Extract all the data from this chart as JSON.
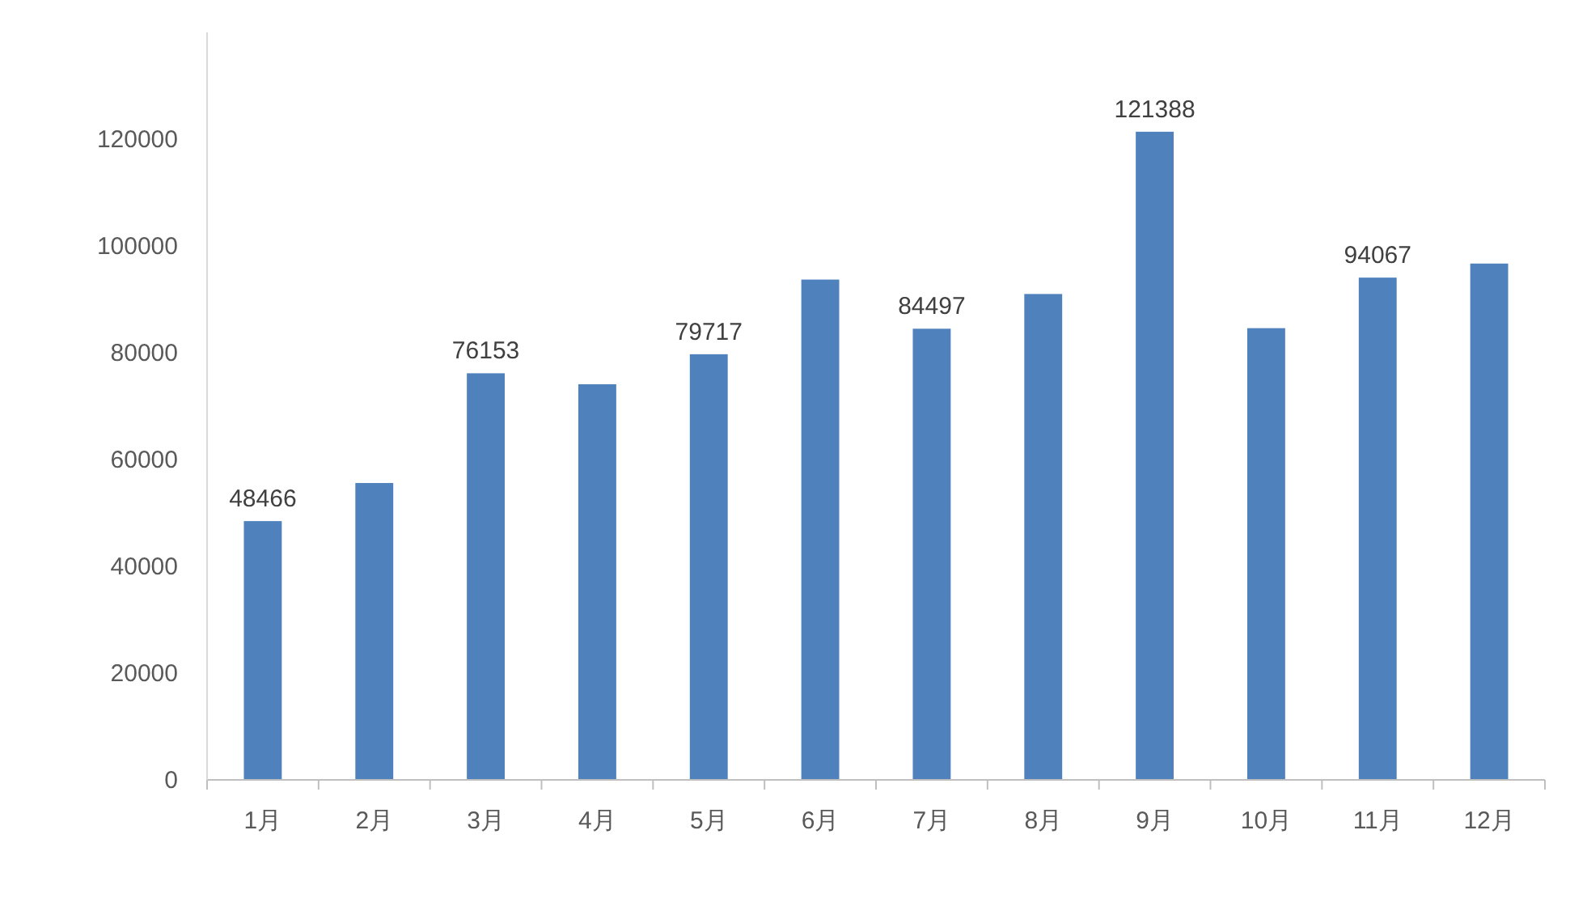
{
  "chart_data": {
    "type": "bar",
    "categories": [
      "1月",
      "2月",
      "3月",
      "4月",
      "5月",
      "6月",
      "7月",
      "8月",
      "9月",
      "10月",
      "11月",
      "12月"
    ],
    "values": [
      48466,
      55600,
      76153,
      74100,
      79717,
      93700,
      84497,
      91000,
      121388,
      84600,
      94067,
      96700
    ],
    "value_labels": [
      "48466",
      null,
      "76153",
      null,
      "79717",
      null,
      "84497",
      null,
      "121388",
      null,
      "94067",
      null
    ],
    "color": "#4f81bd",
    "ylim": [
      0,
      140000
    ],
    "yticks": [
      0,
      20000,
      40000,
      60000,
      80000,
      100000,
      120000
    ],
    "grid": false
  }
}
